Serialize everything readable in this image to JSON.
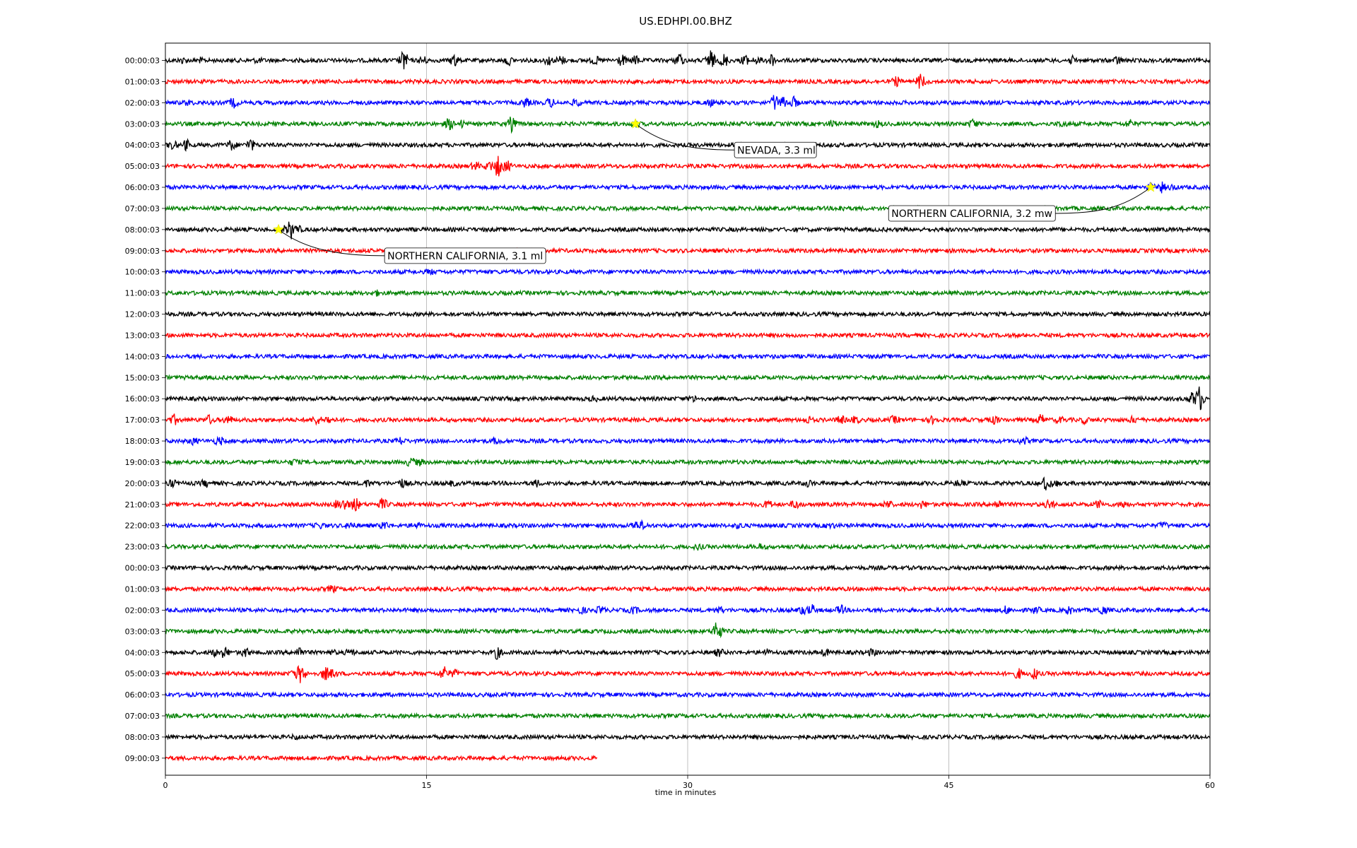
{
  "chart_data": {
    "type": "line",
    "title": "US.EDHPI.00.BHZ",
    "xlabel": "time in minutes",
    "ylabel": "",
    "xlim": [
      0,
      60
    ],
    "x_ticks": [
      0,
      15,
      30,
      45,
      60
    ],
    "x_tick_labels": [
      "0",
      "15",
      "30",
      "45",
      "60"
    ],
    "grid": "vertical lines at x ticks",
    "legend": "none",
    "colors": [
      "#000000",
      "#ff0000",
      "#0000ff",
      "#008000"
    ],
    "rows": [
      {
        "label": "00:00:03",
        "color": "#000000",
        "end": 60,
        "events": [
          [
            1,
            0.3
          ],
          [
            2,
            0.2
          ],
          [
            5.3,
            0.25
          ],
          [
            13.7,
            1.4
          ],
          [
            14.8,
            0.5
          ],
          [
            16.6,
            0.8
          ],
          [
            19.7,
            0.6
          ],
          [
            22,
            0.6
          ],
          [
            22.7,
            0.6
          ],
          [
            24.7,
            0.5
          ],
          [
            26.2,
            0.8
          ],
          [
            27,
            0.6
          ],
          [
            29.5,
            0.9
          ],
          [
            31.3,
            1.6
          ],
          [
            32.1,
            1.0
          ],
          [
            33.3,
            0.6
          ],
          [
            34.0,
            0.5
          ],
          [
            34.8,
            0.9
          ],
          [
            52.1,
            0.5
          ],
          [
            54.7,
            0.5
          ]
        ]
      },
      {
        "label": "01:00:03",
        "color": "#ff0000",
        "end": 60,
        "events": [
          [
            42,
            0.6
          ],
          [
            43.4,
            1.2
          ]
        ]
      },
      {
        "label": "02:00:03",
        "color": "#0000ff",
        "end": 60,
        "events": [
          [
            1.3,
            0.3
          ],
          [
            3.9,
            0.7
          ],
          [
            20.7,
            0.6
          ],
          [
            22.1,
            0.6
          ],
          [
            23.6,
            0.4
          ],
          [
            31.3,
            0.4
          ],
          [
            35.0,
            1.1
          ],
          [
            35.5,
            0.9
          ],
          [
            36.1,
            0.7
          ]
        ]
      },
      {
        "label": "03:00:03",
        "color": "#008000",
        "end": 60,
        "events": [
          [
            16.3,
            0.8
          ],
          [
            17.0,
            0.4
          ],
          [
            19.9,
            1.1
          ],
          [
            27,
            0.4
          ],
          [
            38.3,
            0.4
          ],
          [
            40.9,
            0.4
          ],
          [
            46.4,
            0.6
          ],
          [
            51.5,
            0.4
          ],
          [
            55.4,
            0.5
          ]
        ]
      },
      {
        "label": "04:00:03",
        "color": "#000000",
        "end": 60,
        "events": [
          [
            0.4,
            0.6
          ],
          [
            1.2,
            0.7
          ],
          [
            3.8,
            0.7
          ],
          [
            4.9,
            0.8
          ]
        ]
      },
      {
        "label": "05:00:03",
        "color": "#ff0000",
        "end": 60,
        "events": [
          [
            17.8,
            0.5
          ],
          [
            18.6,
            0.6
          ],
          [
            19.1,
            1.6
          ],
          [
            19.6,
            0.8
          ]
        ]
      },
      {
        "label": "06:00:03",
        "color": "#0000ff",
        "end": 60,
        "events": [
          [
            56.6,
            0.4
          ],
          [
            57.2,
            0.7
          ],
          [
            57.8,
            0.3
          ]
        ]
      },
      {
        "label": "07:00:03",
        "color": "#008000",
        "end": 60,
        "events": [
          [
            38.8,
            0.3
          ]
        ]
      },
      {
        "label": "08:00:03",
        "color": "#000000",
        "end": 60,
        "events": [
          [
            6.9,
            0.5
          ],
          [
            7.2,
            1.4
          ],
          [
            7.6,
            0.5
          ]
        ]
      },
      {
        "label": "09:00:03",
        "color": "#ff0000",
        "end": 60,
        "events": []
      },
      {
        "label": "10:00:03",
        "color": "#0000ff",
        "end": 60,
        "events": [
          [
            15.2,
            0.3
          ]
        ]
      },
      {
        "label": "11:00:03",
        "color": "#008000",
        "end": 60,
        "events": [
          [
            12.1,
            0.3
          ]
        ]
      },
      {
        "label": "12:00:03",
        "color": "#000000",
        "end": 60,
        "events": []
      },
      {
        "label": "13:00:03",
        "color": "#ff0000",
        "end": 60,
        "events": []
      },
      {
        "label": "14:00:03",
        "color": "#0000ff",
        "end": 60,
        "events": []
      },
      {
        "label": "15:00:03",
        "color": "#008000",
        "end": 60,
        "events": []
      },
      {
        "label": "16:00:03",
        "color": "#000000",
        "end": 60,
        "events": [
          [
            24.6,
            0.3
          ],
          [
            30.3,
            0.3
          ],
          [
            59.0,
            0.9
          ],
          [
            59.4,
            1.9
          ]
        ]
      },
      {
        "label": "17:00:03",
        "color": "#ff0000",
        "end": 60,
        "events": [
          [
            0.5,
            0.7
          ],
          [
            2.5,
            0.6
          ],
          [
            3.6,
            0.6
          ],
          [
            8.7,
            0.6
          ],
          [
            9.4,
            0.5
          ],
          [
            36.9,
            0.5
          ],
          [
            38.8,
            0.5
          ],
          [
            39.6,
            0.5
          ],
          [
            41.9,
            0.6
          ],
          [
            44.1,
            0.5
          ],
          [
            47.6,
            0.6
          ],
          [
            50.3,
            0.7
          ],
          [
            51.4,
            0.5
          ],
          [
            52.8,
            0.4
          ],
          [
            55.6,
            0.4
          ]
        ]
      },
      {
        "label": "18:00:03",
        "color": "#0000ff",
        "end": 60,
        "events": [
          [
            1.6,
            0.4
          ],
          [
            3.1,
            0.6
          ],
          [
            13.5,
            0.4
          ],
          [
            19.0,
            0.4
          ],
          [
            49.3,
            0.5
          ]
        ]
      },
      {
        "label": "19:00:03",
        "color": "#008000",
        "end": 60,
        "events": [
          [
            7.4,
            0.4
          ],
          [
            14.1,
            0.6
          ],
          [
            14.6,
            0.4
          ]
        ]
      },
      {
        "label": "20:00:03",
        "color": "#000000",
        "end": 60,
        "events": [
          [
            0.4,
            0.4
          ],
          [
            2.3,
            0.5
          ],
          [
            11.6,
            0.4
          ],
          [
            13.6,
            0.6
          ],
          [
            16.5,
            0.3
          ],
          [
            21.3,
            0.4
          ],
          [
            36.9,
            0.4
          ],
          [
            45.6,
            0.4
          ],
          [
            50.6,
            1.1
          ],
          [
            51.0,
            0.6
          ]
        ]
      },
      {
        "label": "21:00:03",
        "color": "#ff0000",
        "end": 60,
        "events": [
          [
            9.9,
            0.6
          ],
          [
            10.3,
            0.8
          ],
          [
            10.9,
            1.0
          ],
          [
            12.5,
            0.9
          ],
          [
            34.6,
            0.5
          ],
          [
            36.2,
            0.5
          ],
          [
            41.5,
            0.5
          ],
          [
            43.5,
            0.5
          ],
          [
            47.8,
            0.6
          ],
          [
            50.8,
            0.6
          ],
          [
            53.6,
            0.5
          ],
          [
            55.0,
            0.5
          ]
        ]
      },
      {
        "label": "22:00:03",
        "color": "#0000ff",
        "end": 60,
        "events": [
          [
            8.9,
            0.5
          ],
          [
            10.6,
            0.5
          ],
          [
            12.6,
            0.5
          ],
          [
            14.4,
            0.5
          ],
          [
            27.0,
            0.6
          ],
          [
            27.4,
            0.5
          ],
          [
            33.0,
            0.4
          ],
          [
            38.2,
            0.4
          ],
          [
            57.3,
            0.4
          ]
        ]
      },
      {
        "label": "23:00:03",
        "color": "#008000",
        "end": 60,
        "events": [
          [
            30.6,
            0.3
          ],
          [
            34.2,
            0.3
          ]
        ]
      },
      {
        "label": "00:00:03",
        "color": "#000000",
        "end": 60,
        "events": []
      },
      {
        "label": "01:00:03",
        "color": "#ff0000",
        "end": 60,
        "events": [
          [
            9.6,
            0.4
          ]
        ]
      },
      {
        "label": "02:00:03",
        "color": "#0000ff",
        "end": 60,
        "events": [
          [
            23.9,
            0.4
          ],
          [
            25.0,
            0.5
          ],
          [
            26.9,
            0.5
          ],
          [
            31.8,
            0.6
          ],
          [
            36.6,
            0.5
          ],
          [
            37.1,
            0.8
          ],
          [
            38.8,
            0.6
          ],
          [
            48.3,
            0.5
          ],
          [
            50.0,
            0.4
          ],
          [
            51.9,
            0.6
          ],
          [
            53.8,
            0.6
          ]
        ]
      },
      {
        "label": "03:00:03",
        "color": "#008000",
        "end": 60,
        "events": [
          [
            31.7,
            1.9
          ]
        ]
      },
      {
        "label": "04:00:03",
        "color": "#000000",
        "end": 60,
        "events": [
          [
            2.9,
            0.6
          ],
          [
            3.4,
            0.8
          ],
          [
            4.6,
            0.6
          ],
          [
            7.7,
            0.7
          ],
          [
            9.5,
            0.4
          ],
          [
            10.6,
            0.4
          ],
          [
            19.1,
            1.0
          ],
          [
            31.8,
            0.5
          ],
          [
            34.5,
            0.4
          ],
          [
            37.9,
            0.4
          ],
          [
            40.6,
            0.4
          ]
        ]
      },
      {
        "label": "05:00:03",
        "color": "#ff0000",
        "end": 60,
        "events": [
          [
            7.5,
            0.7
          ],
          [
            7.8,
            1.6
          ],
          [
            9.2,
            1.0
          ],
          [
            9.6,
            0.6
          ],
          [
            16.0,
            1.0
          ],
          [
            16.6,
            0.5
          ],
          [
            49.0,
            0.7
          ],
          [
            49.9,
            0.9
          ]
        ]
      },
      {
        "label": "06:00:03",
        "color": "#0000ff",
        "end": 60,
        "events": []
      },
      {
        "label": "07:00:03",
        "color": "#008000",
        "end": 60,
        "events": []
      },
      {
        "label": "08:00:03",
        "color": "#000000",
        "end": 60,
        "events": [
          [
            7.5,
            0.2
          ]
        ]
      },
      {
        "label": "09:00:03",
        "color": "#ff0000",
        "end": 24.8,
        "events": []
      }
    ],
    "annotations": [
      {
        "text": "NEVADA, 3.3 ml",
        "row": 3,
        "x": 27.0
      },
      {
        "text": "NORTHERN CALIFORNIA, 3.2 mw",
        "row": 6,
        "x": 56.6
      },
      {
        "text": "NORTHERN CALIFORNIA, 3.1 ml",
        "row": 8,
        "x": 6.5
      }
    ]
  }
}
